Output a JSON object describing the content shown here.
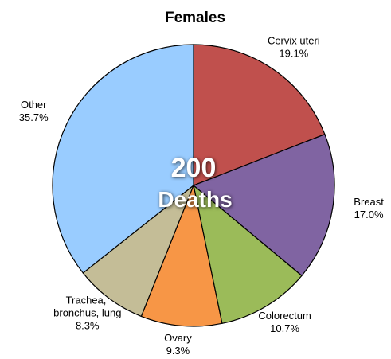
{
  "chart_data": {
    "type": "pie",
    "title": "Females",
    "categories": [
      "Cervix uteri",
      "Breast",
      "Colorectum",
      "Ovary",
      "Trachea, bronchus, lung",
      "Other"
    ],
    "values": [
      19.1,
      17.0,
      10.7,
      9.3,
      8.3,
      35.7
    ],
    "value_labels": [
      "19.1%",
      "17.0%",
      "10.7%",
      "9.3%",
      "8.3%",
      "35.7%"
    ],
    "colors": [
      "#c0504d",
      "#8064a2",
      "#9bbb59",
      "#f79646",
      "#c4bd97",
      "#99ccff"
    ],
    "total": 200,
    "total_label": "Deaths"
  }
}
